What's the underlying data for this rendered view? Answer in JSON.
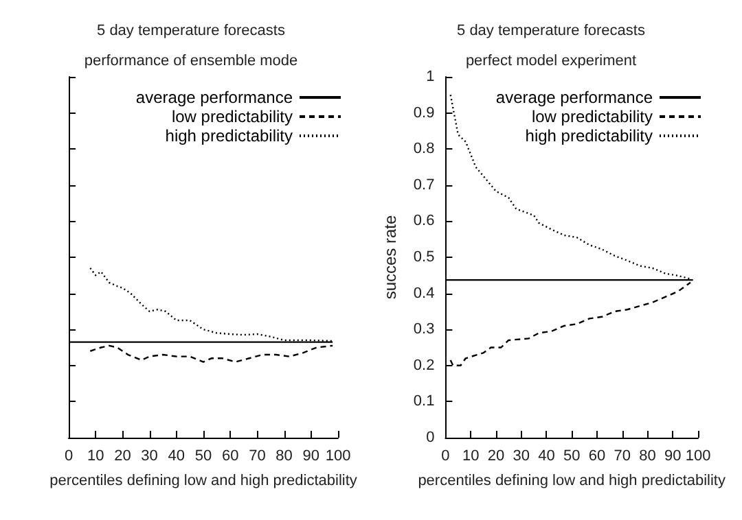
{
  "chart_data": [
    {
      "type": "line",
      "title": "5 day temperature forecasts",
      "subtitle": "performance of ensemble mode",
      "xlabel": "percentiles defining low and high predictability",
      "xlim": [
        0,
        100
      ],
      "xticks": [
        0,
        10,
        20,
        30,
        40,
        50,
        60,
        70,
        80,
        90,
        100
      ],
      "ylim": [
        0,
        1
      ],
      "yticks": [
        0,
        0.1,
        0.2,
        0.3,
        0.4,
        0.5,
        0.6,
        0.7,
        0.8,
        0.9,
        1
      ],
      "tick_labels": "x",
      "grid": false,
      "legend": "top right",
      "marker": "none",
      "series": [
        {
          "name": "average performance",
          "color": "#000000",
          "line_style": "solid",
          "x": [
            0,
            98
          ],
          "values": [
            0.265,
            0.265
          ]
        },
        {
          "name": "low predictability",
          "color": "#000000",
          "line_style": "dashed",
          "x": [
            8,
            12,
            15,
            18,
            22,
            27,
            30,
            35,
            40,
            45,
            50,
            53,
            57,
            62,
            67,
            72,
            77,
            82,
            87,
            92,
            98
          ],
          "values": [
            0.24,
            0.25,
            0.255,
            0.25,
            0.23,
            0.215,
            0.225,
            0.23,
            0.225,
            0.225,
            0.21,
            0.22,
            0.22,
            0.21,
            0.22,
            0.23,
            0.23,
            0.225,
            0.235,
            0.25,
            0.255
          ]
        },
        {
          "name": "high predictability",
          "color": "#000000",
          "line_style": "dotted",
          "x": [
            8,
            10,
            12,
            15,
            18,
            20,
            23,
            27,
            30,
            33,
            36,
            40,
            45,
            50,
            55,
            60,
            65,
            70,
            75,
            80,
            90,
            98
          ],
          "values": [
            0.47,
            0.45,
            0.46,
            0.43,
            0.42,
            0.415,
            0.4,
            0.37,
            0.35,
            0.355,
            0.35,
            0.325,
            0.325,
            0.3,
            0.29,
            0.287,
            0.285,
            0.287,
            0.28,
            0.27,
            0.27,
            0.268
          ]
        }
      ]
    },
    {
      "type": "line",
      "title": "5 day temperature forecasts",
      "subtitle": "perfect model experiment",
      "xlabel": "percentiles defining low and high predictability",
      "ylabel": "succes rate",
      "xlim": [
        0,
        100
      ],
      "xticks": [
        0,
        10,
        20,
        30,
        40,
        50,
        60,
        70,
        80,
        90,
        100
      ],
      "ylim": [
        0,
        1
      ],
      "yticks": [
        0,
        0.1,
        0.2,
        0.3,
        0.4,
        0.5,
        0.6,
        0.7,
        0.8,
        0.9,
        1
      ],
      "grid": false,
      "legend": "top right",
      "marker": "none",
      "series": [
        {
          "name": "average performance",
          "color": "#000000",
          "line_style": "solid",
          "x": [
            0,
            98
          ],
          "values": [
            0.437,
            0.437
          ]
        },
        {
          "name": "low predictability",
          "color": "#000000",
          "line_style": "dashed",
          "x": [
            2,
            3,
            6,
            8,
            15,
            18,
            22,
            25,
            33,
            37,
            42,
            47,
            52,
            57,
            62,
            67,
            72,
            77,
            82,
            87,
            92,
            97
          ],
          "values": [
            0.215,
            0.2,
            0.2,
            0.22,
            0.235,
            0.25,
            0.25,
            0.27,
            0.275,
            0.29,
            0.295,
            0.31,
            0.315,
            0.33,
            0.335,
            0.35,
            0.355,
            0.365,
            0.375,
            0.39,
            0.405,
            0.43
          ]
        },
        {
          "name": "high predictability",
          "color": "#000000",
          "line_style": "dotted",
          "x": [
            2,
            5,
            8,
            12,
            15,
            20,
            25,
            28,
            35,
            37,
            42,
            47,
            52,
            57,
            62,
            67,
            72,
            77,
            82,
            87,
            92,
            97
          ],
          "values": [
            0.95,
            0.84,
            0.82,
            0.75,
            0.725,
            0.683,
            0.665,
            0.634,
            0.616,
            0.595,
            0.577,
            0.561,
            0.555,
            0.534,
            0.522,
            0.504,
            0.491,
            0.476,
            0.47,
            0.455,
            0.449,
            0.44
          ]
        }
      ]
    }
  ]
}
